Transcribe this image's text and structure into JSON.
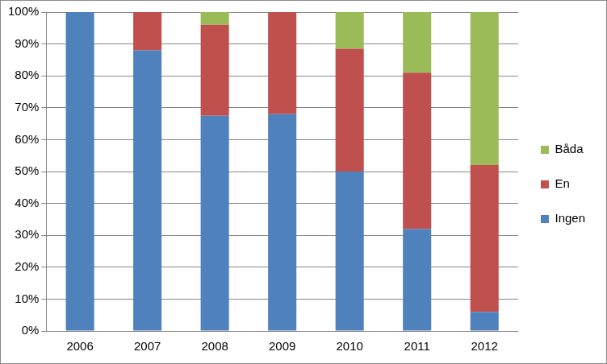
{
  "chart_data": {
    "type": "bar",
    "categories": [
      "2006",
      "2007",
      "2008",
      "2009",
      "2010",
      "2011",
      "2012"
    ],
    "series": [
      {
        "name": "Ingen",
        "color": "#4f81bd",
        "values": [
          100,
          88,
          67.5,
          68,
          50,
          32,
          6
        ]
      },
      {
        "name": "En",
        "color": "#c0504d",
        "values": [
          0,
          12,
          28.5,
          32,
          38.5,
          49,
          46
        ]
      },
      {
        "name": "Båda",
        "color": "#9bbb59",
        "values": [
          0,
          0,
          4,
          0,
          11.5,
          19,
          48
        ]
      }
    ],
    "stacked": true,
    "ylim": [
      0,
      100
    ],
    "yticks": [
      {
        "value": 0,
        "label": "0%"
      },
      {
        "value": 10,
        "label": "10%"
      },
      {
        "value": 20,
        "label": "20%"
      },
      {
        "value": 30,
        "label": "30%"
      },
      {
        "value": 40,
        "label": "40%"
      },
      {
        "value": 50,
        "label": "50%"
      },
      {
        "value": 60,
        "label": "60%"
      },
      {
        "value": 70,
        "label": "70%"
      },
      {
        "value": 80,
        "label": "80%"
      },
      {
        "value": 90,
        "label": "90%"
      },
      {
        "value": 100,
        "label": "100%"
      }
    ],
    "grid": true,
    "legend": "right"
  }
}
